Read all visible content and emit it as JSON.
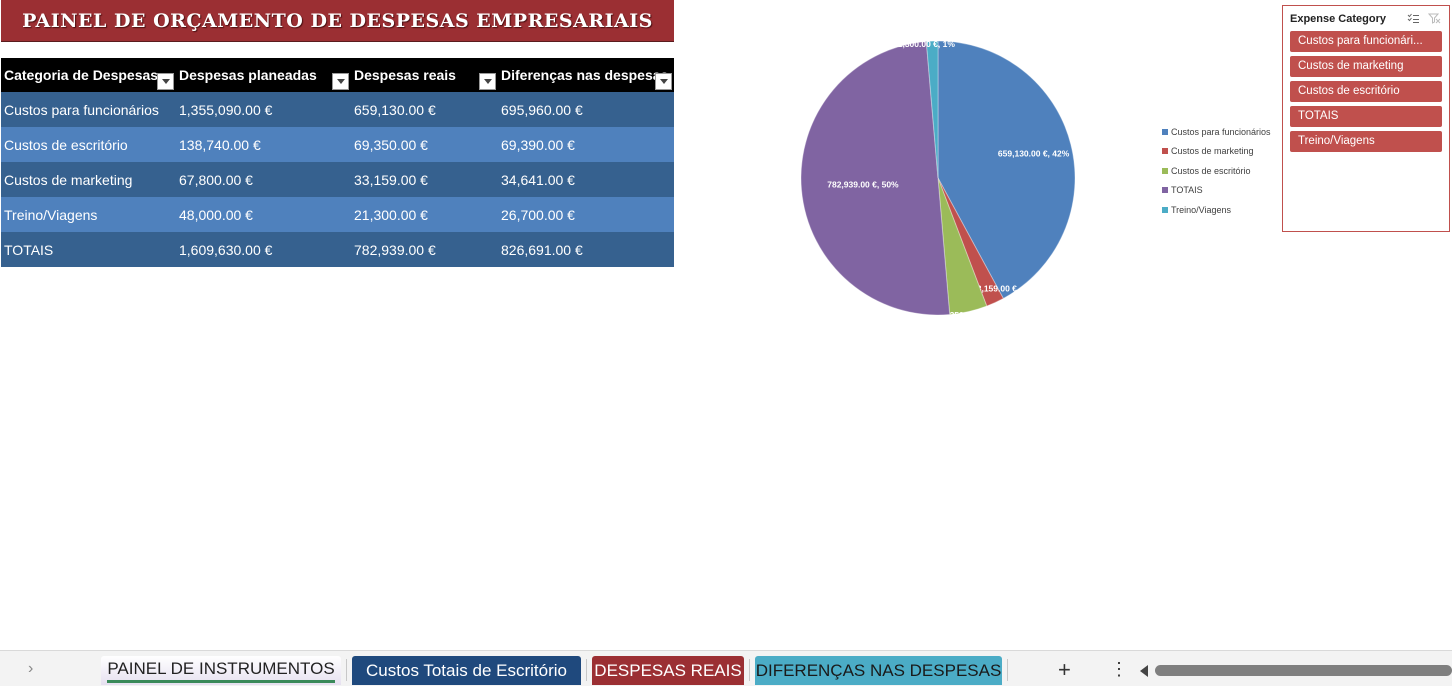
{
  "title": "PAINEL DE ORÇAMENTO DE DESPESAS EMPRESARIAIS",
  "table": {
    "headers": [
      "Categoria de Despesas",
      "Despesas planeadas",
      "Despesas reais",
      "Diferenças nas despesas"
    ],
    "rows": [
      [
        "Custos para funcionários",
        "1,355,090.00 €",
        "659,130.00 €",
        "695,960.00 €"
      ],
      [
        "Custos de escritório",
        "138,740.00 €",
        "69,350.00 €",
        "69,390.00 €"
      ],
      [
        "Custos de marketing",
        "67,800.00 €",
        "33,159.00 €",
        "34,641.00 €"
      ],
      [
        "Treino/Viagens",
        "48,000.00 €",
        "21,300.00 €",
        "26,700.00 €"
      ],
      [
        "TOTAIS",
        "1,609,630.00 €",
        "782,939.00 €",
        "826,691.00 €"
      ]
    ]
  },
  "chart_data": {
    "type": "pie",
    "title": "",
    "slices": [
      {
        "name": "Custos para funcionários",
        "value": 659130,
        "label": "659,130.00 €, 42%",
        "color": "#4f81bd"
      },
      {
        "name": "Custos de marketing",
        "value": 33159,
        "label": "33,159.00 €, 2%",
        "color": "#c0504d"
      },
      {
        "name": "Custos de escritório",
        "value": 69350,
        "label": "69,350.00 €, 5%",
        "color": "#9bbb59"
      },
      {
        "name": "TOTAIS",
        "value": 782939,
        "label": "782,939.00 €, 50%",
        "color": "#8064a2"
      },
      {
        "name": "Treino/Viagens",
        "value": 21300,
        "label": "21,300.00 €, 1%",
        "color": "#4bacc6"
      }
    ],
    "legend": [
      "Custos para funcionários",
      "Custos de marketing",
      "Custos de escritório",
      "TOTAIS",
      "Treino/Viagens"
    ],
    "legend_position": "right"
  },
  "slicer": {
    "title": "Expense Category",
    "items": [
      "Custos para funcionári...",
      "Custos de marketing",
      "Custos de escritório",
      "TOTAIS",
      "Treino/Viagens"
    ],
    "color": "#c0504d"
  },
  "tabs": [
    {
      "label": "PAINEL DE INSTRUMENTOS",
      "color": "#ffffff"
    },
    {
      "label": "Custos Totais de Escritório",
      "color": "#1f497d"
    },
    {
      "label": "DESPESAS REAIS",
      "color": "#9b2f33"
    },
    {
      "label": "DIFERENÇAS NAS DESPESAS",
      "color": "#4bacc6"
    }
  ],
  "icons": {
    "nav": "chevron-right-icon",
    "add": "plus-icon",
    "more": "more-vertical-icon",
    "multiselect": "multi-select-icon",
    "clear": "clear-filter-icon"
  }
}
